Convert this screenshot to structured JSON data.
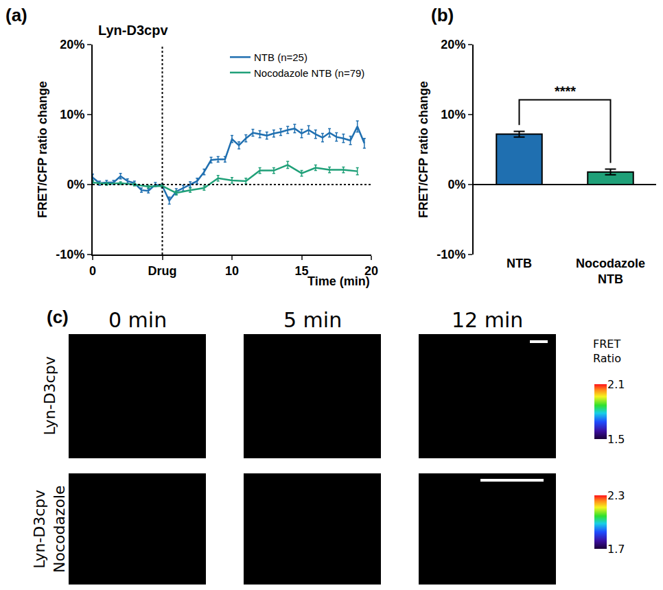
{
  "panel_labels": [
    "(a)",
    "(b)",
    "(c)"
  ],
  "chart_data": [
    {
      "type": "line",
      "title": "Lyn-D3cpv",
      "x_label": "Time (min)",
      "y_label": "FRET/CFP ratio change",
      "xlim": [
        0,
        20
      ],
      "xticks": [
        0,
        {
          "value": 5,
          "label": "Drug"
        },
        10,
        15,
        20
      ],
      "ylim": [
        -10,
        20
      ],
      "yticks": [
        {
          "value": -10,
          "label": "-10%"
        },
        {
          "value": 0,
          "label": "0%"
        },
        {
          "value": 10,
          "label": "10%"
        },
        {
          "value": 20,
          "label": "20%"
        }
      ],
      "vlines": [
        5
      ],
      "hlines": [
        0
      ],
      "legend": "top-right",
      "series": [
        {
          "name": "NTB (n=25)",
          "color": "#1f6fb0",
          "x": [
            0,
            0.5,
            1,
            1.5,
            2,
            2.5,
            3,
            3.5,
            4,
            4.5,
            5,
            5.5,
            6,
            6.5,
            7,
            7.5,
            8,
            8.5,
            9,
            9.5,
            10,
            10.5,
            11,
            11.5,
            12,
            12.5,
            13,
            13.5,
            14,
            14.5,
            15,
            15.5,
            16,
            16.5,
            17,
            17.5,
            18,
            18.5,
            19,
            19.5
          ],
          "values": [
            1.0,
            0.2,
            0.3,
            0.3,
            1.2,
            0.5,
            0.2,
            -0.8,
            -0.9,
            0.0,
            -0.2,
            -2.3,
            -1.0,
            -0.5,
            0.0,
            0.5,
            1.8,
            3.5,
            3.6,
            3.6,
            6.5,
            5.6,
            6.6,
            7.4,
            7.2,
            7.0,
            7.3,
            7.5,
            7.8,
            8.0,
            7.3,
            7.8,
            7.2,
            6.7,
            7.4,
            6.8,
            6.6,
            6.3,
            8.3,
            5.9
          ],
          "errors": [
            0.5,
            0.3,
            0.3,
            0.3,
            0.4,
            0.3,
            0.3,
            0.3,
            0.3,
            0.3,
            0.3,
            0.5,
            0.4,
            0.4,
            0.4,
            0.4,
            0.4,
            0.4,
            0.4,
            0.4,
            0.5,
            0.5,
            0.5,
            0.5,
            0.5,
            0.5,
            0.5,
            0.5,
            0.5,
            0.6,
            0.6,
            0.6,
            0.6,
            0.6,
            0.6,
            0.6,
            0.6,
            0.6,
            0.8,
            0.7
          ]
        },
        {
          "name": "Nocodazole NTB (n=79)",
          "color": "#1fa078",
          "x": [
            0,
            1,
            2,
            3,
            4,
            5,
            6,
            7,
            8,
            9,
            10,
            11,
            12,
            13,
            14,
            15,
            16,
            17,
            18,
            19
          ],
          "values": [
            0.3,
            0.1,
            0.2,
            0.0,
            -0.3,
            -0.2,
            -1.2,
            -0.8,
            -0.5,
            0.9,
            0.6,
            0.5,
            2.0,
            2.0,
            2.8,
            1.6,
            2.4,
            2.1,
            2.1,
            1.9
          ],
          "errors": [
            0.3,
            0.2,
            0.2,
            0.2,
            0.2,
            0.2,
            0.3,
            0.3,
            0.3,
            0.4,
            0.4,
            0.4,
            0.4,
            0.4,
            0.5,
            0.4,
            0.4,
            0.4,
            0.4,
            0.5
          ]
        }
      ]
    },
    {
      "type": "bar",
      "y_label": "FRET/CFP ratio change",
      "categories": [
        "NTB",
        "Nocodazole NTB"
      ],
      "values": [
        7.2,
        1.8
      ],
      "errors": [
        0.4,
        0.4
      ],
      "colors": [
        "#1f6fb0",
        "#1fa078"
      ],
      "ylim": [
        -10,
        20
      ],
      "yticks": [
        {
          "value": -10,
          "label": "-10%"
        },
        {
          "value": 0,
          "label": "0%"
        },
        {
          "value": 10,
          "label": "10%"
        },
        {
          "value": 20,
          "label": "20%"
        }
      ],
      "annotations": [
        {
          "text": "****",
          "between": [
            0,
            1
          ]
        }
      ]
    }
  ],
  "panel_c": {
    "columns": [
      "0 min",
      "5 min",
      "12 min"
    ],
    "colorbar_title": "FRET Ratio",
    "rows": [
      {
        "label": "Lyn-D3cpv",
        "colorbar": {
          "range": [
            1.5,
            2.1
          ],
          "ticks": [
            1.5,
            2.1
          ]
        }
      },
      {
        "label": "Lyn-D3cpv Nocodazole",
        "colorbar": {
          "range": [
            1.7,
            2.3
          ],
          "ticks": [
            1.7,
            2.3
          ]
        }
      }
    ]
  }
}
